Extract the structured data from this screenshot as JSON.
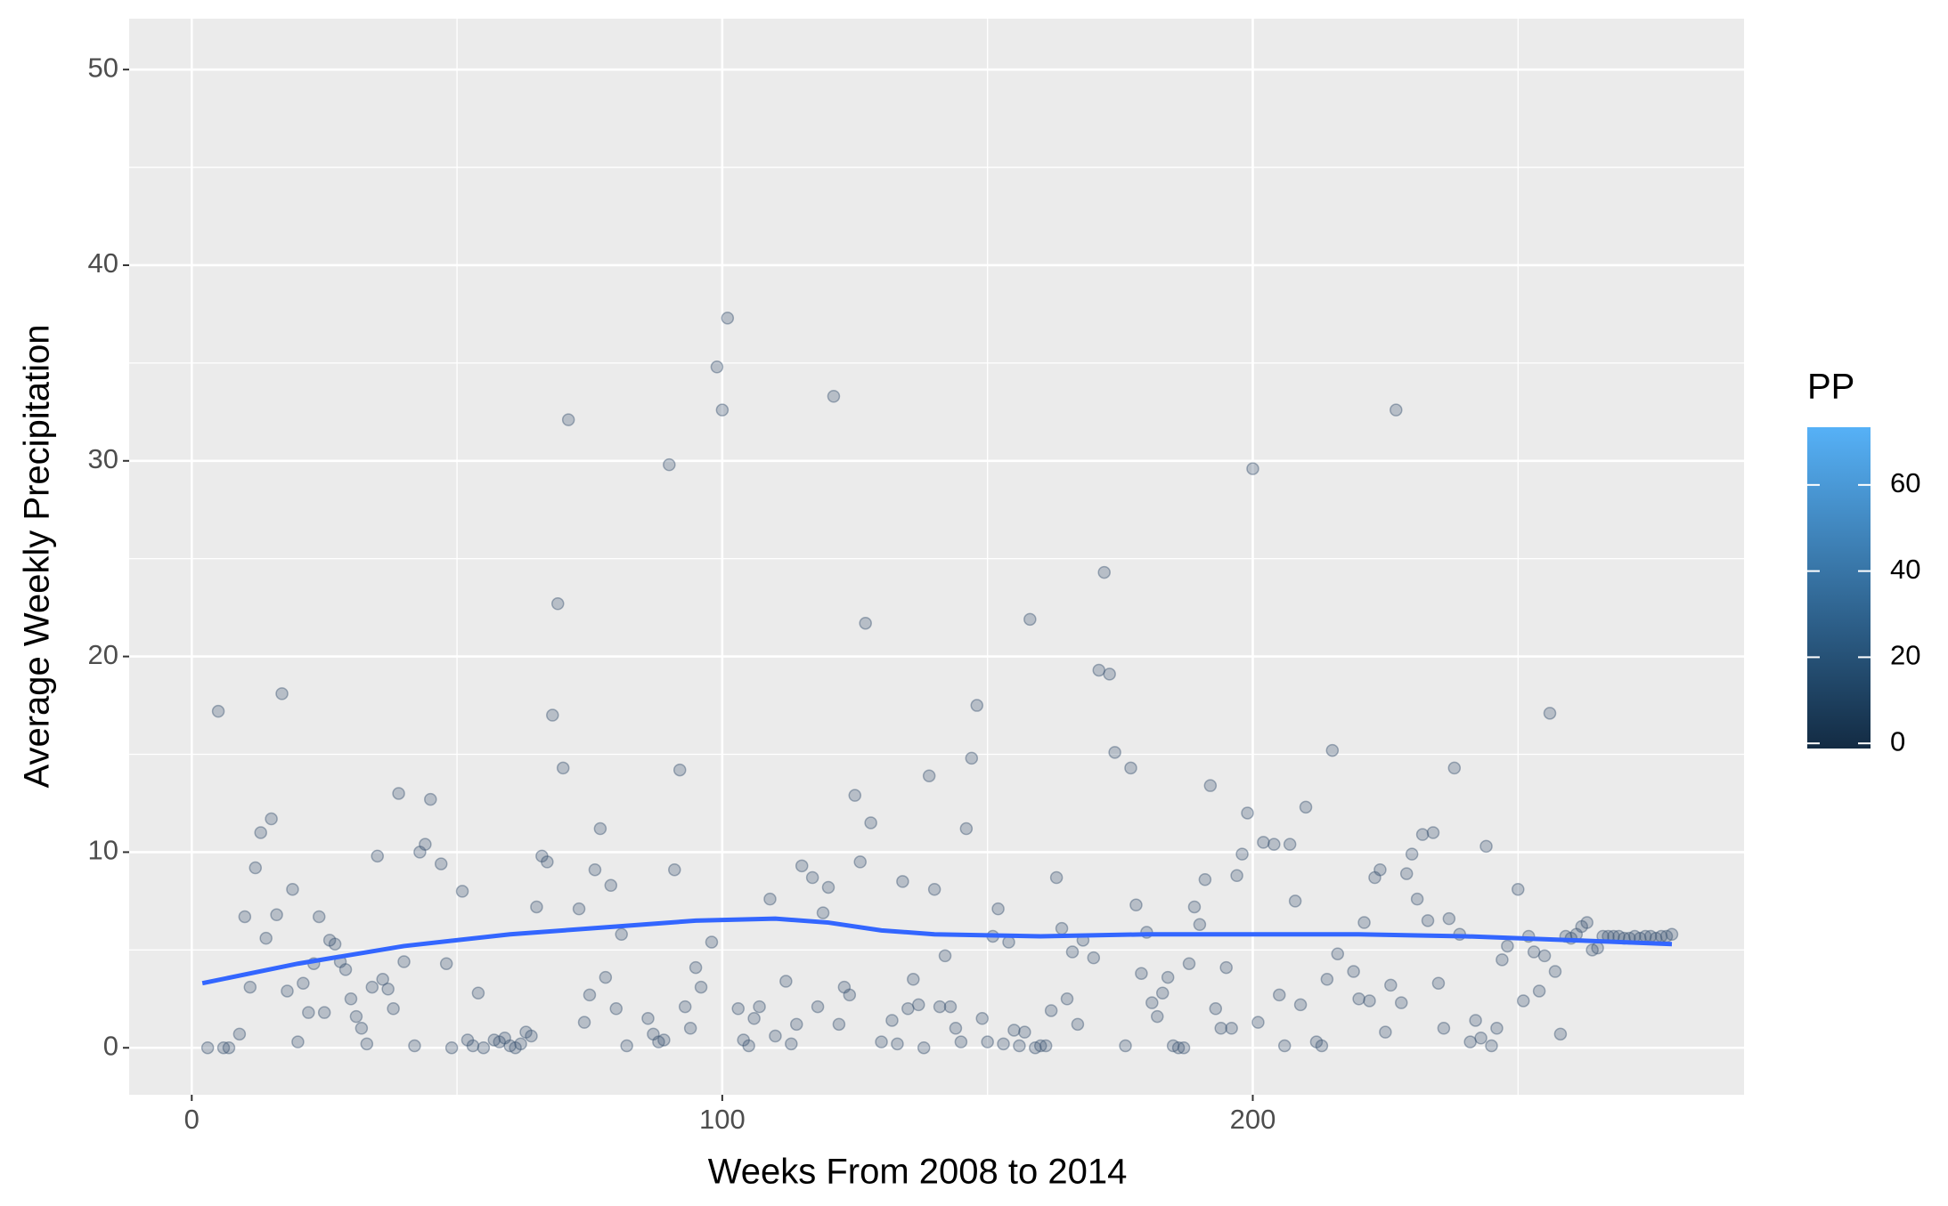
{
  "chart_data": {
    "type": "scatter",
    "x_label": "Weeks From 2008 to 2014",
    "y_label": "Average Weekly Precipitation",
    "xlim": [
      -11.8,
      292.6
    ],
    "ylim": [
      -2.4,
      52.6
    ],
    "xticks": [
      0,
      100,
      200
    ],
    "yticks": [
      0,
      10,
      20,
      30,
      40,
      50
    ],
    "grid": true,
    "point_color": "#3e5674",
    "x": [
      3,
      5,
      6,
      7,
      9,
      10,
      11,
      12,
      13,
      14,
      15,
      16,
      17,
      18,
      19,
      20,
      21,
      22,
      23,
      24,
      25,
      26,
      27,
      28,
      29,
      30,
      31,
      32,
      33,
      34,
      35,
      36,
      37,
      38,
      39,
      40,
      42,
      43,
      44,
      45,
      47,
      48,
      49,
      51,
      52,
      53,
      54,
      55,
      57,
      58,
      59,
      60,
      61,
      62,
      63,
      64,
      65,
      66,
      67,
      68,
      69,
      70,
      71,
      73,
      74,
      75,
      76,
      77,
      78,
      79,
      80,
      81,
      82,
      86,
      87,
      88,
      89,
      90,
      91,
      92,
      93,
      94,
      95,
      96,
      98,
      99,
      100,
      101,
      103,
      104,
      105,
      106,
      107,
      109,
      110,
      112,
      113,
      114,
      115,
      117,
      118,
      119,
      120,
      121,
      122,
      123,
      124,
      125,
      126,
      127,
      128,
      130,
      132,
      133,
      134,
      135,
      136,
      137,
      138,
      139,
      140,
      141,
      142,
      143,
      144,
      145,
      146,
      147,
      148,
      149,
      150,
      151,
      152,
      153,
      154,
      155,
      156,
      157,
      158,
      159,
      160,
      161,
      162,
      163,
      164,
      165,
      166,
      167,
      168,
      170,
      171,
      172,
      173,
      174,
      176,
      177,
      178,
      179,
      180,
      181,
      182,
      183,
      184,
      185,
      186,
      187,
      188,
      189,
      190,
      191,
      192,
      193,
      194,
      195,
      196,
      197,
      198,
      199,
      200,
      201,
      202,
      204,
      205,
      206,
      207,
      208,
      209,
      210,
      212,
      213,
      214,
      215,
      216,
      219,
      220,
      221,
      222,
      223,
      224,
      225,
      226,
      227,
      228,
      229,
      230,
      231,
      232,
      233,
      234,
      235,
      236,
      237,
      238,
      239,
      241,
      242,
      243,
      244,
      245,
      246,
      247,
      248,
      250,
      251,
      252,
      253,
      254,
      255,
      256,
      257,
      258,
      259,
      260,
      261,
      262,
      263,
      264,
      265,
      266,
      267,
      268,
      269,
      270,
      271,
      272,
      273,
      274,
      275,
      276,
      277,
      278,
      279
    ],
    "values": [
      0,
      17.2,
      0,
      0,
      0.7,
      6.7,
      3.1,
      9.2,
      11,
      5.6,
      11.7,
      6.8,
      18.1,
      2.9,
      8.1,
      0.3,
      3.3,
      1.8,
      4.3,
      6.7,
      1.8,
      5.5,
      5.3,
      4.4,
      4.0,
      2.5,
      1.6,
      1.0,
      0.2,
      3.1,
      9.8,
      3.5,
      3.0,
      2.0,
      13.0,
      4.4,
      0.1,
      10.0,
      10.4,
      12.7,
      9.4,
      4.3,
      0,
      8.0,
      0.4,
      0.1,
      2.8,
      0,
      0.4,
      0.3,
      0.5,
      0.1,
      0,
      0.2,
      0.8,
      0.6,
      7.2,
      9.8,
      9.5,
      17.0,
      22.7,
      14.3,
      32.1,
      7.1,
      1.3,
      2.7,
      9.1,
      11.2,
      3.6,
      8.3,
      2.0,
      5.8,
      0.1,
      1.5,
      0.7,
      0.3,
      0.4,
      29.8,
      9.1,
      14.2,
      2.1,
      1.0,
      4.1,
      3.1,
      5.4,
      34.8,
      32.6,
      37.3,
      2.0,
      0.4,
      0.1,
      1.5,
      2.1,
      7.6,
      0.6,
      3.4,
      0.2,
      1.2,
      9.3,
      8.7,
      2.1,
      6.9,
      8.2,
      33.3,
      1.2,
      3.1,
      2.7,
      12.9,
      9.5,
      21.7,
      11.5,
      0.3,
      1.4,
      0.2,
      8.5,
      2.0,
      3.5,
      2.2,
      0,
      13.9,
      8.1,
      2.1,
      4.7,
      2.1,
      1.0,
      0.3,
      11.2,
      14.8,
      17.5,
      1.5,
      0.3,
      5.7,
      7.1,
      0.2,
      5.4,
      0.9,
      0.1,
      0.8,
      21.9,
      0,
      0.1,
      0.1,
      1.9,
      8.7,
      6.1,
      2.5,
      4.9,
      1.2,
      5.5,
      4.6,
      19.3,
      24.3,
      19.1,
      15.1,
      0.1,
      14.3,
      7.3,
      3.8,
      5.9,
      2.3,
      1.6,
      2.8,
      3.6,
      0.1,
      0,
      0,
      4.3,
      7.2,
      6.3,
      8.6,
      13.4,
      2.0,
      1.0,
      4.1,
      1.0,
      8.8,
      9.9,
      12.0,
      29.6,
      1.3,
      10.5,
      10.4,
      2.7,
      0.1,
      10.4,
      7.5,
      2.2,
      12.3,
      0.3,
      0.1,
      3.5,
      15.2,
      4.8,
      3.9,
      2.5,
      6.4,
      2.4,
      8.7,
      9.1,
      0.8,
      3.2,
      32.6,
      2.3,
      8.9,
      9.9,
      7.6,
      10.9,
      6.5,
      11.0,
      3.3,
      1.0,
      6.6,
      14.3,
      5.8,
      0.3,
      1.4,
      0.5,
      10.3,
      0.1,
      1.0,
      4.5,
      5.2,
      8.1,
      2.4,
      5.7,
      4.9,
      2.9,
      4.7,
      17.1,
      3.9,
      0.7,
      5.7,
      5.6,
      5.8,
      6.2,
      6.4,
      5.0,
      5.1,
      5.7,
      5.7,
      5.7,
      5.7,
      5.6,
      5.6,
      5.7,
      5.6,
      5.7,
      5.7,
      5.6,
      5.7,
      5.7,
      5.8
    ],
    "smooth": {
      "color": "#3366ff",
      "x": [
        2,
        20,
        40,
        60,
        80,
        95,
        110,
        120,
        130,
        140,
        160,
        180,
        200,
        220,
        240,
        260,
        279
      ],
      "values": [
        3.3,
        4.3,
        5.2,
        5.8,
        6.2,
        6.5,
        6.6,
        6.4,
        6.0,
        5.8,
        5.7,
        5.8,
        5.8,
        5.8,
        5.7,
        5.5,
        5.3
      ]
    },
    "colorbar": {
      "title": "PP",
      "lim": [
        -1.2,
        73.4
      ],
      "ticks": [
        0,
        20,
        40,
        60
      ],
      "colors": [
        "#132b43",
        "#56b1f7"
      ]
    }
  }
}
